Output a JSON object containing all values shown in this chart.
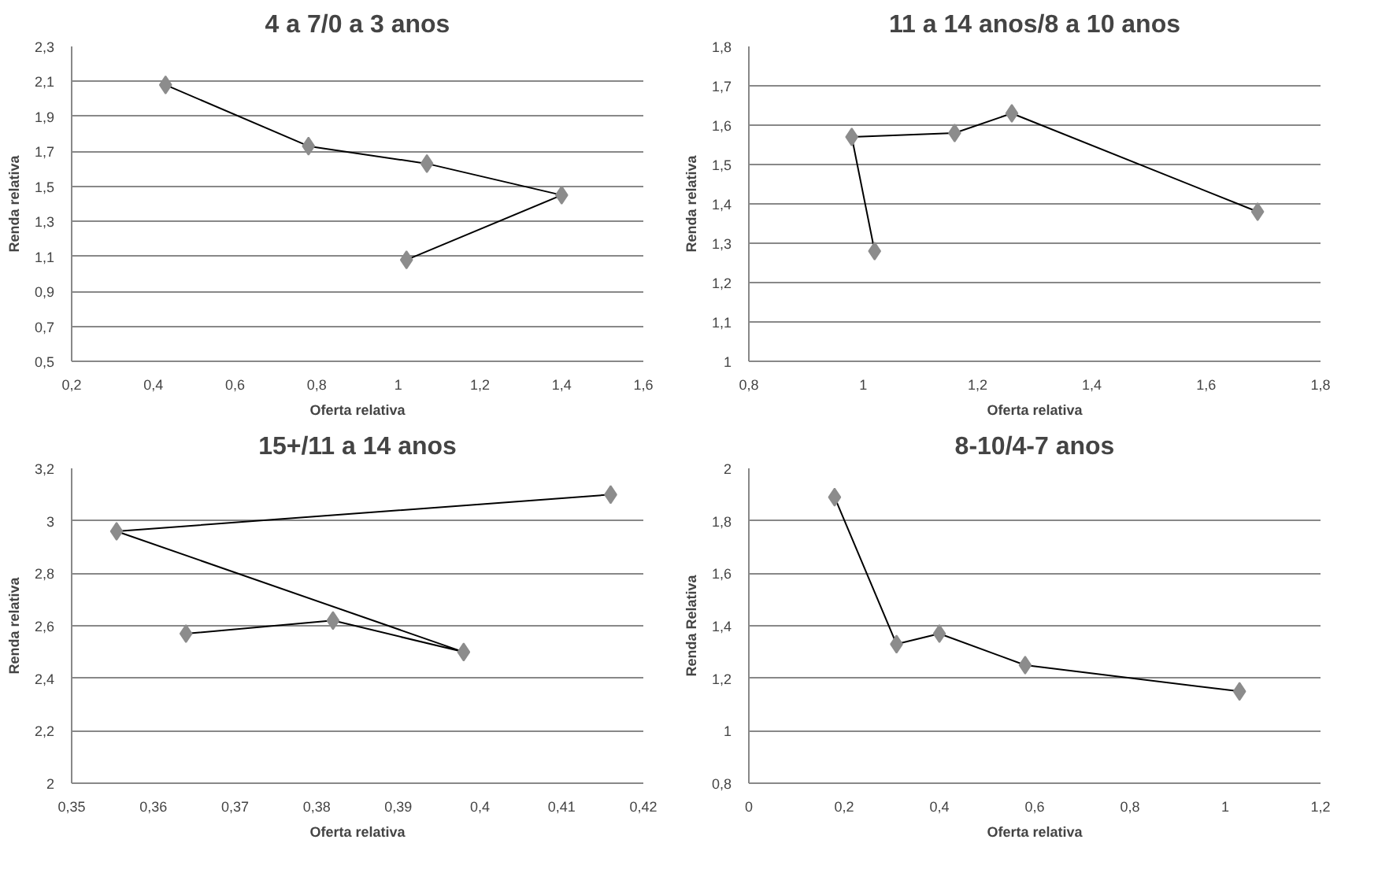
{
  "chart_data": [
    {
      "type": "line",
      "title": "4 a 7/0 a 3 anos",
      "xlabel": "Oferta relativa",
      "ylabel": "Renda relativa",
      "marker": "diamond",
      "grid": "y",
      "x": [
        0.43,
        0.78,
        1.07,
        1.4,
        1.02
      ],
      "series": [
        {
          "color": "#8c8c8c",
          "values": [
            2.08,
            1.73,
            1.63,
            1.45,
            1.08
          ]
        }
      ],
      "xlim": [
        0.2,
        1.6
      ],
      "xticks": [
        {
          "value": 0.2,
          "label": "0,2"
        },
        {
          "value": 0.4,
          "label": "0,4"
        },
        {
          "value": 0.6,
          "label": "0,6"
        },
        {
          "value": 0.8,
          "label": "0,8"
        },
        1,
        {
          "value": 1.2,
          "label": "1,2"
        },
        {
          "value": 1.4,
          "label": "1,4"
        },
        {
          "value": 1.6,
          "label": "1,6"
        }
      ],
      "ylim": [
        0.5,
        2.3
      ],
      "yticks": [
        {
          "value": 0.5,
          "label": "0,5"
        },
        {
          "value": 0.7,
          "label": "0,7"
        },
        {
          "value": 0.9,
          "label": "0,9"
        },
        {
          "value": 1.1,
          "label": "1,1"
        },
        {
          "value": 1.3,
          "label": "1,3"
        },
        {
          "value": 1.5,
          "label": "1,5"
        },
        {
          "value": 1.7,
          "label": "1,7"
        },
        {
          "value": 1.9,
          "label": "1,9"
        },
        {
          "value": 2.1,
          "label": "2,1"
        },
        {
          "value": 2.3,
          "label": "2,3"
        }
      ]
    },
    {
      "type": "line",
      "title": "11 a 14 anos/8 a 10 anos",
      "xlabel": "Oferta relativa",
      "ylabel": "Renda relativa",
      "marker": "diamond",
      "grid": "y",
      "x": [
        1.02,
        0.98,
        1.16,
        1.26,
        1.69
      ],
      "series": [
        {
          "color": "#8c8c8c",
          "values": [
            1.28,
            1.57,
            1.58,
            1.63,
            1.38
          ]
        }
      ],
      "xlim": [
        0.8,
        1.8
      ],
      "xticks": [
        {
          "value": 0.8,
          "label": "0,8"
        },
        1,
        {
          "value": 1.2,
          "label": "1,2"
        },
        {
          "value": 1.4,
          "label": "1,4"
        },
        {
          "value": 1.6,
          "label": "1,6"
        },
        {
          "value": 1.8,
          "label": "1,8"
        }
      ],
      "ylim": [
        1,
        1.8
      ],
      "yticks": [
        1,
        {
          "value": 1.1,
          "label": "1,1"
        },
        {
          "value": 1.2,
          "label": "1,2"
        },
        {
          "value": 1.3,
          "label": "1,3"
        },
        {
          "value": 1.4,
          "label": "1,4"
        },
        {
          "value": 1.5,
          "label": "1,5"
        },
        {
          "value": 1.6,
          "label": "1,6"
        },
        {
          "value": 1.7,
          "label": "1,7"
        },
        {
          "value": 1.8,
          "label": "1,8"
        }
      ]
    },
    {
      "type": "line",
      "title": "15+/11 a 14 anos",
      "xlabel": "Oferta relativa",
      "ylabel": "Renda relativa",
      "marker": "diamond",
      "grid": "y",
      "x": [
        0.364,
        0.382,
        0.398,
        0.3555,
        0.416
      ],
      "series": [
        {
          "color": "#8c8c8c",
          "values": [
            2.57,
            2.62,
            2.5,
            2.96,
            3.1
          ]
        }
      ],
      "xlim": [
        0.35,
        0.42
      ],
      "xticks": [
        {
          "value": 0.35,
          "label": "0,35"
        },
        {
          "value": 0.36,
          "label": "0,36"
        },
        {
          "value": 0.37,
          "label": "0,37"
        },
        {
          "value": 0.38,
          "label": "0,38"
        },
        {
          "value": 0.39,
          "label": "0,39"
        },
        {
          "value": 0.4,
          "label": "0,4"
        },
        {
          "value": 0.41,
          "label": "0,41"
        },
        {
          "value": 0.42,
          "label": "0,42"
        }
      ],
      "ylim": [
        2,
        3.2
      ],
      "yticks": [
        2,
        {
          "value": 2.2,
          "label": "2,2"
        },
        {
          "value": 2.4,
          "label": "2,4"
        },
        {
          "value": 2.6,
          "label": "2,6"
        },
        {
          "value": 2.8,
          "label": "2,8"
        },
        3,
        {
          "value": 3.2,
          "label": "3,2"
        }
      ]
    },
    {
      "type": "line",
      "title": "8-10/4-7 anos",
      "xlabel": "Oferta relativa",
      "ylabel": "Renda Relativa",
      "marker": "diamond",
      "grid": "y",
      "x": [
        0.18,
        0.31,
        0.4,
        0.58,
        1.03
      ],
      "series": [
        {
          "color": "#8c8c8c",
          "values": [
            1.89,
            1.33,
            1.37,
            1.25,
            1.15
          ]
        }
      ],
      "xlim": [
        0,
        1.2
      ],
      "xticks": [
        0,
        {
          "value": 0.2,
          "label": "0,2"
        },
        {
          "value": 0.4,
          "label": "0,4"
        },
        {
          "value": 0.6,
          "label": "0,6"
        },
        {
          "value": 0.8,
          "label": "0,8"
        },
        1,
        {
          "value": 1.2,
          "label": "1,2"
        }
      ],
      "ylim": [
        0.8,
        2
      ],
      "yticks": [
        {
          "value": 0.8,
          "label": "0,8"
        },
        1,
        {
          "value": 1.2,
          "label": "1,2"
        },
        {
          "value": 1.4,
          "label": "1,4"
        },
        {
          "value": 1.6,
          "label": "1,6"
        },
        {
          "value": 1.8,
          "label": "1,8"
        },
        2
      ]
    }
  ]
}
